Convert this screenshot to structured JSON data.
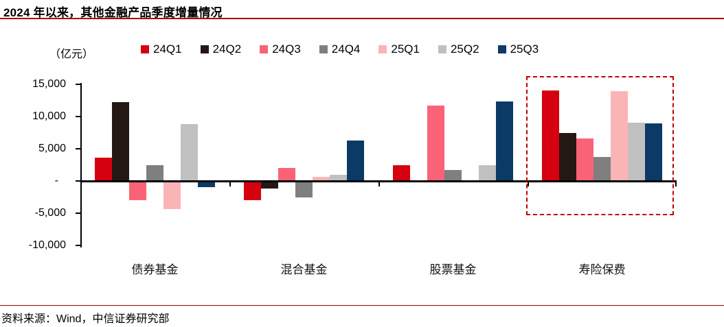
{
  "header": {
    "title": "2024 年以来，其他金融产品季度增量情况"
  },
  "footer": {
    "source": "资料来源：Wind，中信证券研究部"
  },
  "chart_data": {
    "type": "bar",
    "title": "2024 年以来，其他金融产品季度增量情况",
    "unit_label": "（亿元）",
    "xlabel": "",
    "ylabel": "亿元",
    "categories": [
      "债券基金",
      "混合基金",
      "股票基金",
      "寿险保费"
    ],
    "series": [
      {
        "name": "24Q1",
        "color": "#D7000F",
        "values": [
          3600,
          -3000,
          2500,
          14000
        ]
      },
      {
        "name": "24Q2",
        "color": "#241815",
        "values": [
          12200,
          -1200,
          0,
          7500
        ]
      },
      {
        "name": "24Q3",
        "color": "#FA6377",
        "values": [
          -3000,
          2000,
          11700,
          6600
        ]
      },
      {
        "name": "24Q4",
        "color": "#7F7F7F",
        "values": [
          2400,
          -2600,
          1700,
          3700
        ]
      },
      {
        "name": "25Q1",
        "color": "#FBB4B6",
        "values": [
          -4400,
          600,
          0,
          13900
        ]
      },
      {
        "name": "25Q2",
        "color": "#C0C0C0",
        "values": [
          8800,
          1000,
          2500,
          9050
        ]
      },
      {
        "name": "25Q3",
        "color": "#0B3A66",
        "values": [
          -1000,
          6250,
          12300,
          8900
        ]
      }
    ],
    "ylim": [
      -10000,
      15000
    ],
    "yticks": [
      {
        "label": "15,000",
        "value": 15000
      },
      {
        "label": "10,000",
        "value": 10000
      },
      {
        "label": "5,000",
        "value": 5000
      },
      {
        "label": "-",
        "value": 0
      },
      {
        "label": "-5,000",
        "value": -5000
      },
      {
        "label": "-10,000",
        "value": -10000
      }
    ],
    "grid": false,
    "legend_position": "top",
    "highlight": {
      "category": "寿险保费",
      "style": "red-dashed-box",
      "color": "#C00000"
    }
  }
}
